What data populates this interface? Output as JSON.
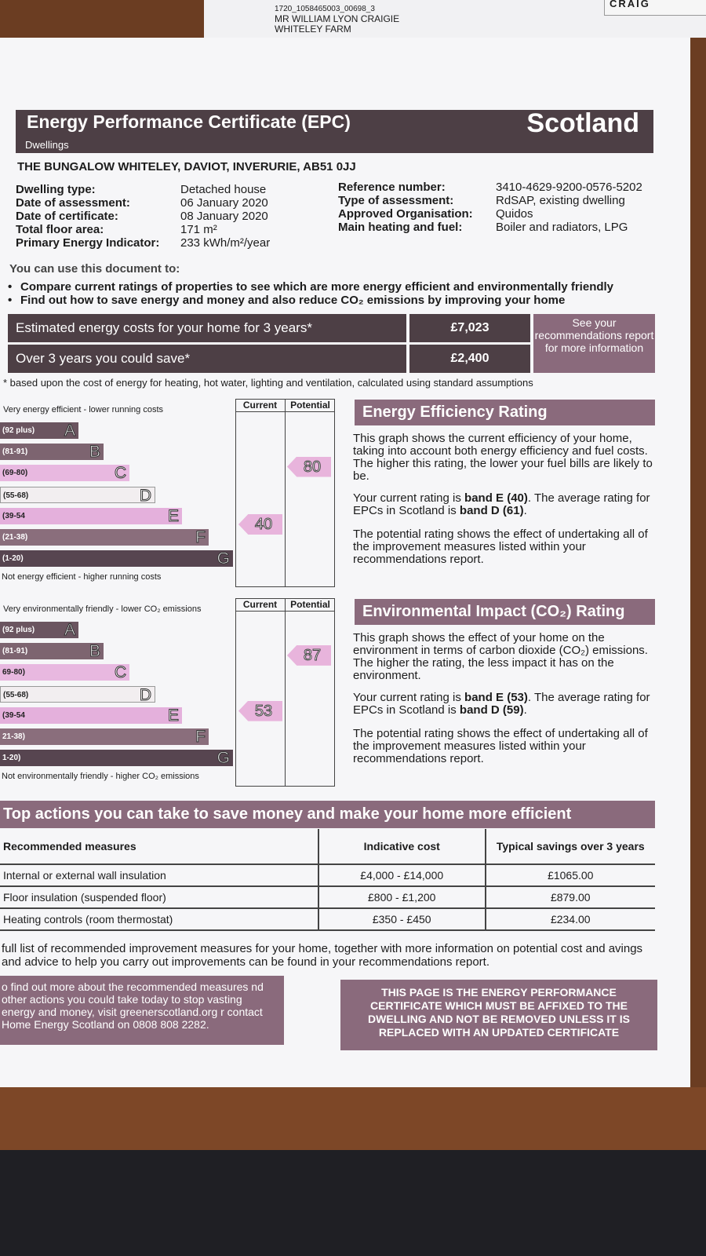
{
  "envelope": {
    "reference": "1720_1058465003_00698_3",
    "name": "MR WILLIAM LYON CRAIGIE",
    "address": "WHITELEY FARM",
    "corner": "CRAIG"
  },
  "header": {
    "title": "Energy Performance Certificate (EPC)",
    "region": "Scotland",
    "subtitle": "Dwellings"
  },
  "address": "THE BUNGALOW WHITELEY, DAVIOT, INVERURIE, AB51 0JJ",
  "details_left": [
    {
      "label": "Dwelling type:",
      "value": "Detached house"
    },
    {
      "label": "Date of assessment:",
      "value": "06 January 2020"
    },
    {
      "label": "Date of certificate:",
      "value": "08 January 2020"
    },
    {
      "label": "Total floor area:",
      "value": "171 m²"
    },
    {
      "label": "Primary Energy Indicator:",
      "value": "233 kWh/m²/year"
    }
  ],
  "details_right": [
    {
      "label": "Reference number:",
      "value": "3410-4629-9200-0576-5202"
    },
    {
      "label": "Type of assessment:",
      "value": "RdSAP, existing dwelling"
    },
    {
      "label": "Approved Organisation:",
      "value": "Quidos"
    },
    {
      "label": "Main heating and fuel:",
      "value": "Boiler and radiators, LPG"
    }
  ],
  "uses": {
    "heading": "You can use this document to:",
    "bullets": [
      "Compare current ratings of properties to see which are more energy efficient and environmentally friendly",
      "Find out how to save energy and money and also reduce CO₂ emissions by improving your home"
    ]
  },
  "costs": {
    "rows": [
      {
        "label": "Estimated energy costs for your home for 3 years*",
        "value": "£7,023"
      },
      {
        "label": "Over 3 years you could save*",
        "value": "£2,400"
      }
    ],
    "side_note": "See your recommendations report for more information",
    "footnote": "* based upon the cost of energy for heating, hot water, lighting and ventilation, calculated using standard assumptions"
  },
  "energy_rating": {
    "top_label": "Very energy efficient - lower running costs",
    "bottom_label": "Not energy efficient - higher running costs",
    "col_current": "Current",
    "col_potential": "Potential",
    "bands": [
      {
        "range": "(92 plus)",
        "letter": "A"
      },
      {
        "range": "(81-91)",
        "letter": "B"
      },
      {
        "range": "(69-80)",
        "letter": "C"
      },
      {
        "range": "(55-68)",
        "letter": "D"
      },
      {
        "range": "(39-54",
        "letter": "E"
      },
      {
        "range": "(21-38)",
        "letter": "F"
      },
      {
        "range": "(1-20)",
        "letter": "G"
      }
    ],
    "current": "40",
    "potential": "80",
    "heading": "Energy Efficiency Rating",
    "para1": "This graph shows the current efficiency of your home, taking into account both energy efficiency and fuel costs. The higher this rating, the lower your fuel bills are likely to be.",
    "para2": {
      "start": "Your current rating is ",
      "bold1": "band E (40)",
      "middle": ". The average rating for EPCs in Scotland is ",
      "bold2": "band D (61)",
      "end": "."
    },
    "para3": "The potential rating shows the effect of undertaking all of the improvement measures listed within your recommendations report."
  },
  "environment_rating": {
    "top_label": "Very environmentally friendly - lower CO₂ emissions",
    "bottom_label": "Not environmentally friendly - higher CO₂ emissions",
    "col_current": "Current",
    "col_potential": "Potential",
    "bands": [
      {
        "range": "(92 plus)",
        "letter": "A"
      },
      {
        "range": "(81-91)",
        "letter": "B"
      },
      {
        "range": "69-80)",
        "letter": "C"
      },
      {
        "range": "(55-68)",
        "letter": "D"
      },
      {
        "range": "(39-54",
        "letter": "E"
      },
      {
        "range": "21-38)",
        "letter": "F"
      },
      {
        "range": "1-20)",
        "letter": "G"
      }
    ],
    "current": "53",
    "potential": "87",
    "heading": "Environmental Impact (CO₂) Rating",
    "para1": "This graph shows the effect of your home on the environment in terms of carbon dioxide (CO₂) emissions. The higher the rating, the less impact it has on the environment.",
    "para2": {
      "start": "Your current rating is ",
      "bold1": "band E (53)",
      "middle": ". The average rating for EPCs in Scotland is ",
      "bold2": "band D (59)",
      "end": "."
    },
    "para3": "The potential rating shows the effect of undertaking all of the improvement measures listed within your recommendations report."
  },
  "actions": {
    "heading": "Top actions you can take to save money and make your home more efficient",
    "table": {
      "headers": [
        "Recommended measures",
        "Indicative cost",
        "Typical savings over 3 years"
      ],
      "rows": [
        [
          "Internal or external wall insulation",
          "£4,000 - £14,000",
          "£1065.00"
        ],
        [
          "Floor insulation (suspended floor)",
          "£800 - £1,200",
          "£879.00"
        ],
        [
          "Heating controls (room thermostat)",
          "£350 - £450",
          "£234.00"
        ]
      ]
    },
    "note": "full list of recommended improvement measures for your home, together with more information on potential cost and avings and advice to help you carry out improvements can be found in your recommendations report."
  },
  "footer": {
    "info": "o find out more about the recommended measures nd other actions you could take today to stop vasting energy and money, visit greenerscotland.org r contact Home Energy Scotland on 0808 808 2282.",
    "notice": "THIS PAGE IS THE ENERGY PERFORMANCE CERTIFICATE WHICH MUST BE AFFIXED TO THE DWELLING AND NOT BE REMOVED UNLESS IT IS REPLACED WITH AN UPDATED CERTIFICATE"
  }
}
